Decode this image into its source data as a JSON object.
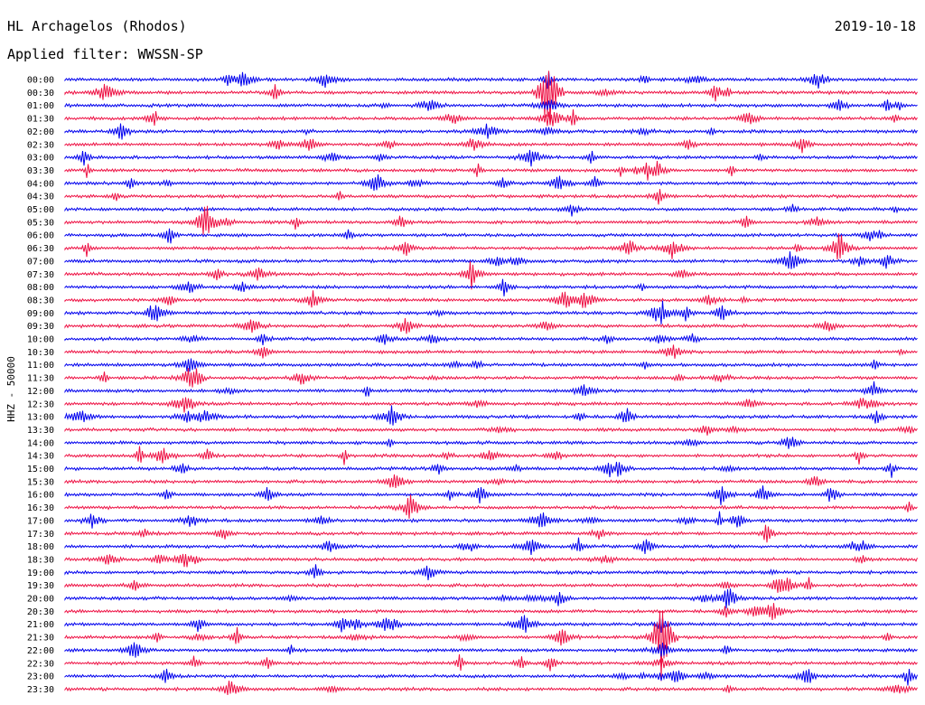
{
  "header": {
    "station": "HL Archagelos (Rhodos)",
    "filter": "Applied filter: WWSSN-SP",
    "date": "2019-10-18"
  },
  "chart_data": {
    "type": "line",
    "title": "HL Archagelos (Rhodos)",
    "subtitle": "Applied filter: WWSSN-SP",
    "date": "2019-10-18",
    "ylabel": "HHZ - 50000",
    "xlabel": "",
    "grid": false,
    "trace_colors": [
      "#0000ee",
      "#ee1144"
    ],
    "row_labels": [
      "00:00",
      "00:30",
      "01:00",
      "01:30",
      "02:00",
      "02:30",
      "03:00",
      "03:30",
      "04:00",
      "04:30",
      "05:00",
      "05:30",
      "06:00",
      "06:30",
      "07:00",
      "07:30",
      "08:00",
      "08:30",
      "09:00",
      "09:30",
      "10:00",
      "10:30",
      "11:00",
      "11:30",
      "12:00",
      "12:30",
      "13:00",
      "13:30",
      "14:00",
      "14:30",
      "15:00",
      "15:30",
      "16:00",
      "16:30",
      "17:00",
      "17:30",
      "18:00",
      "18:30",
      "19:00",
      "19:30",
      "20:00",
      "20:30",
      "21:00",
      "21:30",
      "22:00",
      "22:30",
      "23:00",
      "23:30"
    ],
    "events": [
      {
        "time": "00:30",
        "minute": 17,
        "amplitude": "large"
      },
      {
        "time": "21:30",
        "minute": 21,
        "amplitude": "large"
      }
    ]
  }
}
